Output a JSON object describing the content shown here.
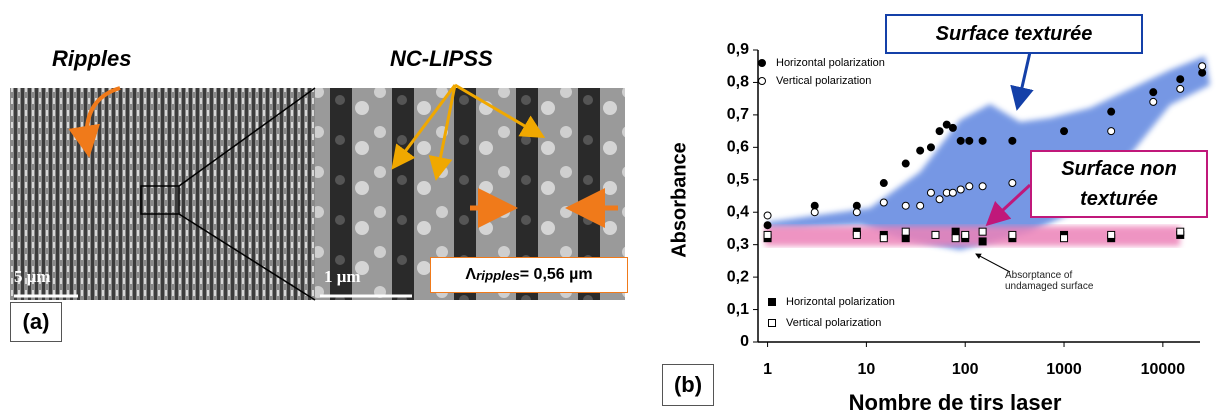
{
  "panel_a": {
    "ripples": "Ripples",
    "nc_lipss": "NC-LIPSS",
    "scale_1": "5 μm",
    "scale_2": "1 μm",
    "lambda_symbol": "Λ",
    "lambda_subscript": "ripples",
    "lambda_text": "= 0,56 µm",
    "label": "(a)"
  },
  "chart_data": {
    "type": "scatter",
    "label": "(b)",
    "x_label": "Nombre de tirs laser",
    "y_label": "Absorbance",
    "annotations": [
      "Surface texturée",
      "Surface non texturée",
      "Absorptance of undamaged surface"
    ],
    "xscale": "log",
    "xlim": [
      0.8,
      30000
    ],
    "xticks": [
      1,
      10,
      100,
      1000,
      10000
    ],
    "ylim": [
      0,
      0.9
    ],
    "yticks": [
      0,
      {
        "value": 0.1,
        "label": "0,1"
      },
      {
        "value": 0.2,
        "label": "0,2"
      },
      {
        "value": 0.3,
        "label": "0,3"
      },
      {
        "value": 0.4,
        "label": "0,4"
      },
      {
        "value": 0.5,
        "label": "0,5"
      },
      {
        "value": 0.6,
        "label": "0,6"
      },
      {
        "value": 0.7,
        "label": "0,7"
      },
      {
        "value": 0.8,
        "label": "0,8"
      },
      {
        "value": 0.9,
        "label": "0,9"
      }
    ],
    "grid": false,
    "series": [
      {
        "name": "Horizontal polarization",
        "color": "#000000",
        "marker": "circle",
        "filled": true,
        "x": [
          1,
          3,
          8,
          15,
          25,
          35,
          45,
          55,
          65,
          75,
          90,
          110,
          150,
          300,
          1000,
          3000,
          8000,
          15000,
          25000
        ],
        "values": [
          0.36,
          0.42,
          0.42,
          0.49,
          0.55,
          0.59,
          0.6,
          0.65,
          0.67,
          0.66,
          0.62,
          0.62,
          0.62,
          0.62,
          0.65,
          0.71,
          0.77,
          0.81,
          0.83
        ]
      },
      {
        "name": "Vertical polarization",
        "color": "#000000",
        "marker": "circle",
        "filled": false,
        "x": [
          1,
          3,
          8,
          15,
          25,
          35,
          45,
          55,
          65,
          75,
          90,
          110,
          150,
          300,
          1000,
          3000,
          8000,
          15000,
          25000
        ],
        "values": [
          0.39,
          0.4,
          0.4,
          0.43,
          0.42,
          0.42,
          0.46,
          0.44,
          0.46,
          0.46,
          0.47,
          0.48,
          0.48,
          0.49,
          0.54,
          0.65,
          0.74,
          0.78,
          0.85
        ]
      },
      {
        "name": "Horizontal polarization",
        "color": "#000000",
        "marker": "square",
        "filled": true,
        "x": [
          1,
          8,
          15,
          25,
          50,
          80,
          100,
          150,
          300,
          1000,
          3000,
          15000
        ],
        "values": [
          0.32,
          0.34,
          0.33,
          0.32,
          0.33,
          0.34,
          0.32,
          0.31,
          0.32,
          0.33,
          0.32,
          0.33
        ]
      },
      {
        "name": "Vertical polarization",
        "color": "#000000",
        "marker": "square",
        "filled": false,
        "x": [
          1,
          8,
          15,
          25,
          50,
          80,
          100,
          150,
          300,
          1000,
          3000,
          15000
        ],
        "values": [
          0.33,
          0.33,
          0.32,
          0.34,
          0.33,
          0.32,
          0.33,
          0.34,
          0.33,
          0.32,
          0.33,
          0.34
        ]
      }
    ]
  }
}
